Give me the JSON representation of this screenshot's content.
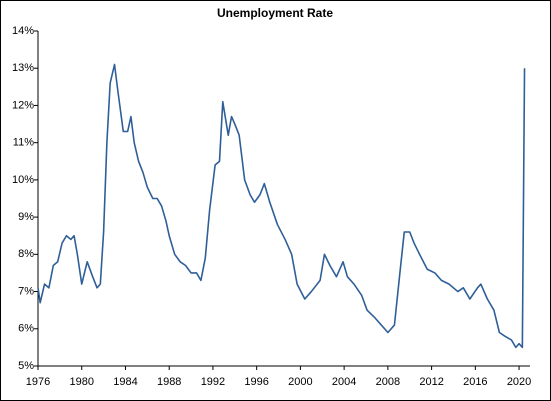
{
  "chart_data": {
    "type": "line",
    "title": "Unemployment Rate",
    "x": [
      1976.0,
      1976.2,
      1976.6,
      1977.0,
      1977.4,
      1977.8,
      1978.2,
      1978.6,
      1979.0,
      1979.3,
      1979.6,
      1980.0,
      1980.5,
      1981.0,
      1981.4,
      1981.7,
      1982.0,
      1982.3,
      1982.6,
      1983.0,
      1983.3,
      1983.8,
      1984.2,
      1984.5,
      1984.8,
      1985.2,
      1985.6,
      1986.0,
      1986.5,
      1986.9,
      1987.3,
      1987.7,
      1988.0,
      1988.5,
      1989.0,
      1989.5,
      1990.0,
      1990.5,
      1990.9,
      1991.3,
      1991.7,
      1992.2,
      1992.6,
      1992.9,
      1993.4,
      1993.7,
      1994.0,
      1994.4,
      1994.9,
      1995.4,
      1995.8,
      1996.3,
      1996.7,
      1997.2,
      1997.9,
      1998.6,
      1999.2,
      1999.7,
      2000.4,
      2001.0,
      2001.8,
      2002.2,
      2002.7,
      2003.3,
      2003.9,
      2004.3,
      2004.9,
      2005.6,
      2006.1,
      2006.8,
      2007.4,
      2008.0,
      2008.6,
      2009.1,
      2009.5,
      2010.0,
      2010.4,
      2010.9,
      2011.6,
      2012.3,
      2012.9,
      2013.6,
      2014.4,
      2014.9,
      2015.5,
      2016.2,
      2016.5,
      2017.1,
      2017.7,
      2018.2,
      2018.7,
      2019.3,
      2019.7,
      2020.0,
      2020.3,
      2020.5
    ],
    "series": [
      {
        "name": "Unemployment Rate",
        "color": "#2f5f98",
        "values": [
          7.1,
          6.7,
          7.2,
          7.1,
          7.7,
          7.8,
          8.3,
          8.5,
          8.4,
          8.5,
          8.0,
          7.2,
          7.8,
          7.4,
          7.1,
          7.2,
          8.6,
          11.0,
          12.6,
          13.1,
          12.4,
          11.3,
          11.3,
          11.7,
          11.0,
          10.5,
          10.2,
          9.8,
          9.5,
          9.5,
          9.3,
          8.9,
          8.5,
          8.0,
          7.8,
          7.7,
          7.5,
          7.5,
          7.3,
          7.9,
          9.2,
          10.4,
          10.5,
          12.1,
          11.2,
          11.7,
          11.5,
          11.2,
          10.0,
          9.6,
          9.4,
          9.6,
          9.9,
          9.4,
          8.8,
          8.4,
          8.0,
          7.2,
          6.8,
          7.0,
          7.3,
          8.0,
          7.7,
          7.4,
          7.8,
          7.4,
          7.2,
          6.9,
          6.5,
          6.3,
          6.1,
          5.9,
          6.1,
          7.5,
          8.6,
          8.6,
          8.3,
          8.0,
          7.6,
          7.5,
          7.3,
          7.2,
          7.0,
          7.1,
          6.8,
          7.1,
          7.2,
          6.8,
          6.5,
          5.9,
          5.8,
          5.7,
          5.5,
          5.6,
          5.5,
          13.0
        ]
      }
    ],
    "xlim": [
      1976,
      2021
    ],
    "xticks": [
      1976,
      1980,
      1984,
      1988,
      1992,
      1996,
      2000,
      2004,
      2008,
      2012,
      2016,
      2020
    ],
    "ylim": [
      5,
      14
    ],
    "yticks": [
      {
        "value": 5,
        "label": "5%"
      },
      {
        "value": 6,
        "label": "6%"
      },
      {
        "value": 7,
        "label": "7%"
      },
      {
        "value": 8,
        "label": "8%"
      },
      {
        "value": 9,
        "label": "9%"
      },
      {
        "value": 10,
        "label": "10%"
      },
      {
        "value": 11,
        "label": "11%"
      },
      {
        "value": 12,
        "label": "12%"
      },
      {
        "value": 13,
        "label": "13%"
      },
      {
        "value": 14,
        "label": "14%"
      }
    ],
    "grid": false
  }
}
